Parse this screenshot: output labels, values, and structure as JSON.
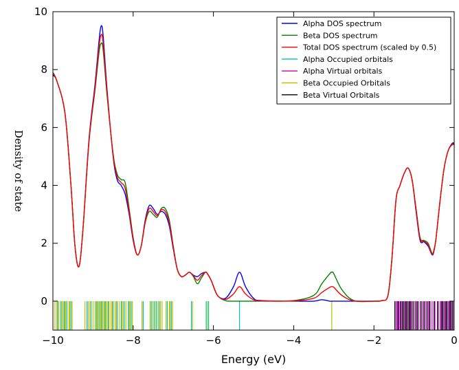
{
  "chart_data": {
    "type": "line",
    "xlabel": "Energy (eV)",
    "ylabel": "Density of state",
    "xlim": [
      -10,
      0
    ],
    "ylim": [
      -1,
      10
    ],
    "xticks": [
      -10,
      -8,
      -6,
      -4,
      -2,
      0
    ],
    "xtick_labels": [
      "−10",
      "−8",
      "−6",
      "−4",
      "−2",
      "0"
    ],
    "yticks": [
      0,
      2,
      4,
      6,
      8,
      10
    ],
    "ytick_labels": [
      "0",
      "2",
      "4",
      "6",
      "8",
      "10"
    ],
    "grid": false,
    "legend_position": "top-right",
    "series": [
      {
        "name": "Alpha DOS spectrum",
        "color": "#0000ff",
        "x": [
          -10.0,
          -9.9,
          -9.7,
          -9.55,
          -9.45,
          -9.35,
          -9.25,
          -9.1,
          -8.95,
          -8.85,
          -8.8,
          -8.75,
          -8.65,
          -8.5,
          -8.4,
          -8.3,
          -8.2,
          -8.1,
          -8.0,
          -7.9,
          -7.8,
          -7.7,
          -7.6,
          -7.5,
          -7.4,
          -7.3,
          -7.2,
          -7.1,
          -7.0,
          -6.9,
          -6.8,
          -6.7,
          -6.6,
          -6.5,
          -6.4,
          -6.3,
          -6.2,
          -6.15,
          -6.05,
          -5.9,
          -5.7,
          -5.5,
          -5.35,
          -5.2,
          -5.0,
          -4.8,
          -4.0,
          -3.5,
          -3.3,
          -3.1,
          -3.05,
          -3.0,
          -2.8,
          -2.5,
          -2.0,
          -1.8,
          -1.65,
          -1.55,
          -1.45,
          -1.35,
          -1.25,
          -1.15,
          -1.05,
          -0.95,
          -0.85,
          -0.75,
          -0.65,
          -0.55,
          -0.5,
          -0.45,
          -0.35,
          -0.25,
          -0.15,
          -0.05,
          0.0
        ],
        "y": [
          7.8,
          7.6,
          6.5,
          4.0,
          1.9,
          1.2,
          2.5,
          5.6,
          7.5,
          9.0,
          9.5,
          9.2,
          7.3,
          5.0,
          4.2,
          4.0,
          3.7,
          3.0,
          2.1,
          1.6,
          1.9,
          2.8,
          3.3,
          3.2,
          3.0,
          3.1,
          3.0,
          2.6,
          1.8,
          1.1,
          0.85,
          0.9,
          1.0,
          0.9,
          0.85,
          0.95,
          1.0,
          0.95,
          0.7,
          0.2,
          0.1,
          0.5,
          1.0,
          0.5,
          0.1,
          0.02,
          0.0,
          0.0,
          0.05,
          0.0,
          0.0,
          0.0,
          0.0,
          0.0,
          0.0,
          0.02,
          0.2,
          1.5,
          3.5,
          4.0,
          4.4,
          4.6,
          4.2,
          3.1,
          2.1,
          2.05,
          1.9,
          1.6,
          1.75,
          2.2,
          3.5,
          4.6,
          5.2,
          5.45,
          5.45
        ]
      },
      {
        "name": "Beta DOS spectrum",
        "color": "#008000",
        "x": [
          -10.0,
          -9.9,
          -9.7,
          -9.55,
          -9.45,
          -9.35,
          -9.25,
          -9.1,
          -8.95,
          -8.85,
          -8.8,
          -8.75,
          -8.65,
          -8.5,
          -8.4,
          -8.3,
          -8.2,
          -8.1,
          -8.0,
          -7.9,
          -7.8,
          -7.7,
          -7.6,
          -7.5,
          -7.4,
          -7.3,
          -7.2,
          -7.1,
          -7.0,
          -6.9,
          -6.8,
          -6.7,
          -6.6,
          -6.5,
          -6.4,
          -6.3,
          -6.2,
          -6.15,
          -6.05,
          -5.9,
          -5.7,
          -5.5,
          -5.35,
          -5.2,
          -5.0,
          -4.8,
          -4.0,
          -3.5,
          -3.3,
          -3.1,
          -3.05,
          -3.0,
          -2.8,
          -2.5,
          -2.0,
          -1.8,
          -1.65,
          -1.55,
          -1.45,
          -1.35,
          -1.25,
          -1.15,
          -1.05,
          -0.95,
          -0.85,
          -0.75,
          -0.65,
          -0.55,
          -0.5,
          -0.45,
          -0.35,
          -0.25,
          -0.15,
          -0.05,
          0.0
        ],
        "y": [
          7.9,
          7.6,
          6.5,
          4.0,
          1.9,
          1.2,
          2.5,
          5.5,
          7.3,
          8.6,
          8.9,
          8.7,
          7.1,
          5.1,
          4.4,
          4.2,
          4.1,
          3.2,
          2.2,
          1.6,
          1.9,
          2.7,
          3.1,
          3.0,
          2.9,
          3.2,
          3.2,
          2.8,
          1.9,
          1.1,
          0.85,
          0.9,
          1.0,
          0.85,
          0.6,
          0.8,
          1.0,
          0.95,
          0.7,
          0.2,
          0.02,
          0.0,
          0.0,
          0.0,
          0.0,
          0.0,
          0.02,
          0.2,
          0.6,
          0.95,
          1.0,
          0.95,
          0.4,
          0.02,
          0.0,
          0.02,
          0.2,
          1.5,
          3.5,
          4.0,
          4.4,
          4.6,
          4.2,
          3.2,
          2.2,
          2.1,
          2.0,
          1.65,
          1.8,
          2.2,
          3.5,
          4.6,
          5.2,
          5.4,
          5.4
        ]
      },
      {
        "name": "Total DOS spectrum (scaled by 0.5)",
        "color": "#ff0000",
        "x": [
          -10.0,
          -9.9,
          -9.7,
          -9.55,
          -9.45,
          -9.35,
          -9.25,
          -9.1,
          -8.95,
          -8.85,
          -8.8,
          -8.75,
          -8.65,
          -8.5,
          -8.4,
          -8.3,
          -8.2,
          -8.1,
          -8.0,
          -7.9,
          -7.8,
          -7.7,
          -7.6,
          -7.5,
          -7.4,
          -7.3,
          -7.2,
          -7.1,
          -7.0,
          -6.9,
          -6.8,
          -6.7,
          -6.6,
          -6.5,
          -6.4,
          -6.3,
          -6.2,
          -6.15,
          -6.05,
          -5.9,
          -5.7,
          -5.5,
          -5.35,
          -5.2,
          -5.0,
          -4.8,
          -4.0,
          -3.5,
          -3.3,
          -3.1,
          -3.05,
          -3.0,
          -2.8,
          -2.5,
          -2.0,
          -1.8,
          -1.65,
          -1.55,
          -1.45,
          -1.35,
          -1.25,
          -1.15,
          -1.05,
          -0.95,
          -0.85,
          -0.75,
          -0.65,
          -0.55,
          -0.5,
          -0.45,
          -0.35,
          -0.25,
          -0.15,
          -0.05,
          0.0
        ],
        "y": [
          7.85,
          7.6,
          6.5,
          4.0,
          1.9,
          1.2,
          2.5,
          5.55,
          7.4,
          8.8,
          9.2,
          8.95,
          7.2,
          5.05,
          4.3,
          4.1,
          3.9,
          3.1,
          2.15,
          1.6,
          1.9,
          2.75,
          3.2,
          3.1,
          2.95,
          3.15,
          3.1,
          2.7,
          1.85,
          1.1,
          0.85,
          0.9,
          1.0,
          0.88,
          0.72,
          0.88,
          1.0,
          0.95,
          0.7,
          0.2,
          0.06,
          0.25,
          0.5,
          0.25,
          0.05,
          0.01,
          0.01,
          0.1,
          0.3,
          0.48,
          0.5,
          0.48,
          0.2,
          0.01,
          0.0,
          0.02,
          0.2,
          1.5,
          3.5,
          4.0,
          4.4,
          4.6,
          4.2,
          3.15,
          2.15,
          2.07,
          1.95,
          1.62,
          1.78,
          2.2,
          3.5,
          4.6,
          5.2,
          5.42,
          5.42
        ]
      }
    ],
    "orbital_series": [
      {
        "name": "Alpha Occupied orbitals",
        "color": "#00bfbf",
        "x": [
          -9.88,
          -9.8,
          -9.72,
          -9.65,
          -9.55,
          -9.15,
          -9.05,
          -8.92,
          -8.85,
          -8.78,
          -8.7,
          -8.62,
          -8.5,
          -8.4,
          -8.3,
          -8.22,
          -8.12,
          -8.05,
          -7.75,
          -7.55,
          -7.48,
          -7.42,
          -7.35,
          -7.15,
          -7.05,
          -6.55,
          -6.18,
          -6.12,
          -5.35
        ]
      },
      {
        "name": "Alpha Virtual orbitals",
        "color": "#bf00bf",
        "x": [
          -1.45,
          -1.42,
          -1.38,
          -1.35,
          -1.3,
          -1.22,
          -1.18,
          -1.1,
          -1.05,
          -0.98,
          -0.92,
          -0.85,
          -0.78,
          -0.72,
          -0.65,
          -0.6,
          -0.55,
          -0.48,
          -0.42,
          -0.35,
          -0.3,
          -0.25,
          -0.2,
          -0.15,
          -0.1,
          -0.05
        ]
      },
      {
        "name": "Beta Occupied Orbitals",
        "color": "#bfbf00",
        "x": [
          -9.95,
          -9.9,
          -9.85,
          -9.78,
          -9.75,
          -9.7,
          -9.68,
          -9.6,
          -9.58,
          -9.52,
          -9.2,
          -9.12,
          -9.08,
          -9.0,
          -8.95,
          -8.9,
          -8.88,
          -8.82,
          -8.8,
          -8.75,
          -8.72,
          -8.68,
          -8.65,
          -8.6,
          -8.55,
          -8.52,
          -8.45,
          -8.42,
          -8.35,
          -8.28,
          -8.25,
          -8.18,
          -8.1,
          -8.08,
          -8.02,
          -7.78,
          -7.58,
          -7.52,
          -7.45,
          -7.38,
          -7.32,
          -7.28,
          -7.18,
          -7.1,
          -7.08,
          -7.02,
          -6.52,
          -6.15,
          -3.05
        ]
      },
      {
        "name": "Beta Virtual Orbitals",
        "color": "#000000",
        "x": [
          -1.48,
          -1.4,
          -1.33,
          -1.28,
          -1.25,
          -1.2,
          -1.15,
          -1.12,
          -1.08,
          -1.02,
          -0.95,
          -0.9,
          -0.82,
          -0.75,
          -0.68,
          -0.62,
          -0.5,
          -0.4,
          -0.32,
          -0.28,
          -0.22,
          -0.18,
          -0.12,
          -0.08,
          -0.03
        ]
      }
    ]
  }
}
